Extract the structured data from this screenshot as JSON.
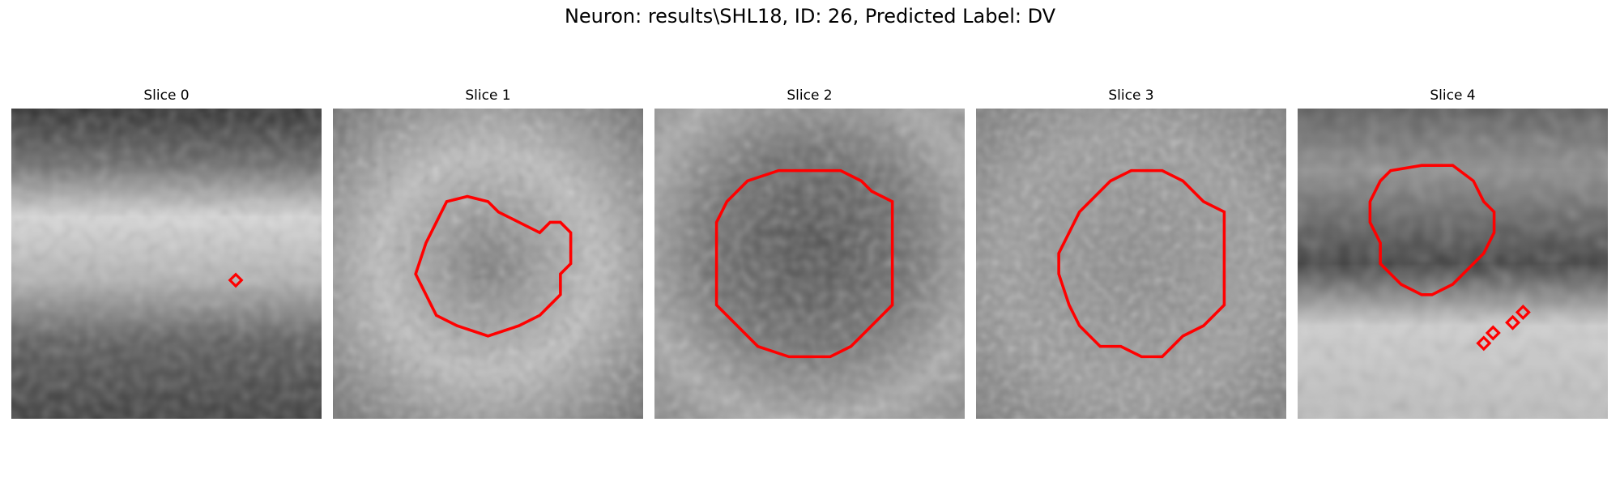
{
  "figure": {
    "title": "Neuron: results\\SHL18, ID: 26, Predicted Label: DV"
  },
  "overlay_color": "#ff0000",
  "panels": [
    {
      "title": "Slice 0"
    },
    {
      "title": "Slice 1"
    },
    {
      "title": "Slice 2"
    },
    {
      "title": "Slice 3"
    },
    {
      "title": "Slice 4"
    }
  ]
}
